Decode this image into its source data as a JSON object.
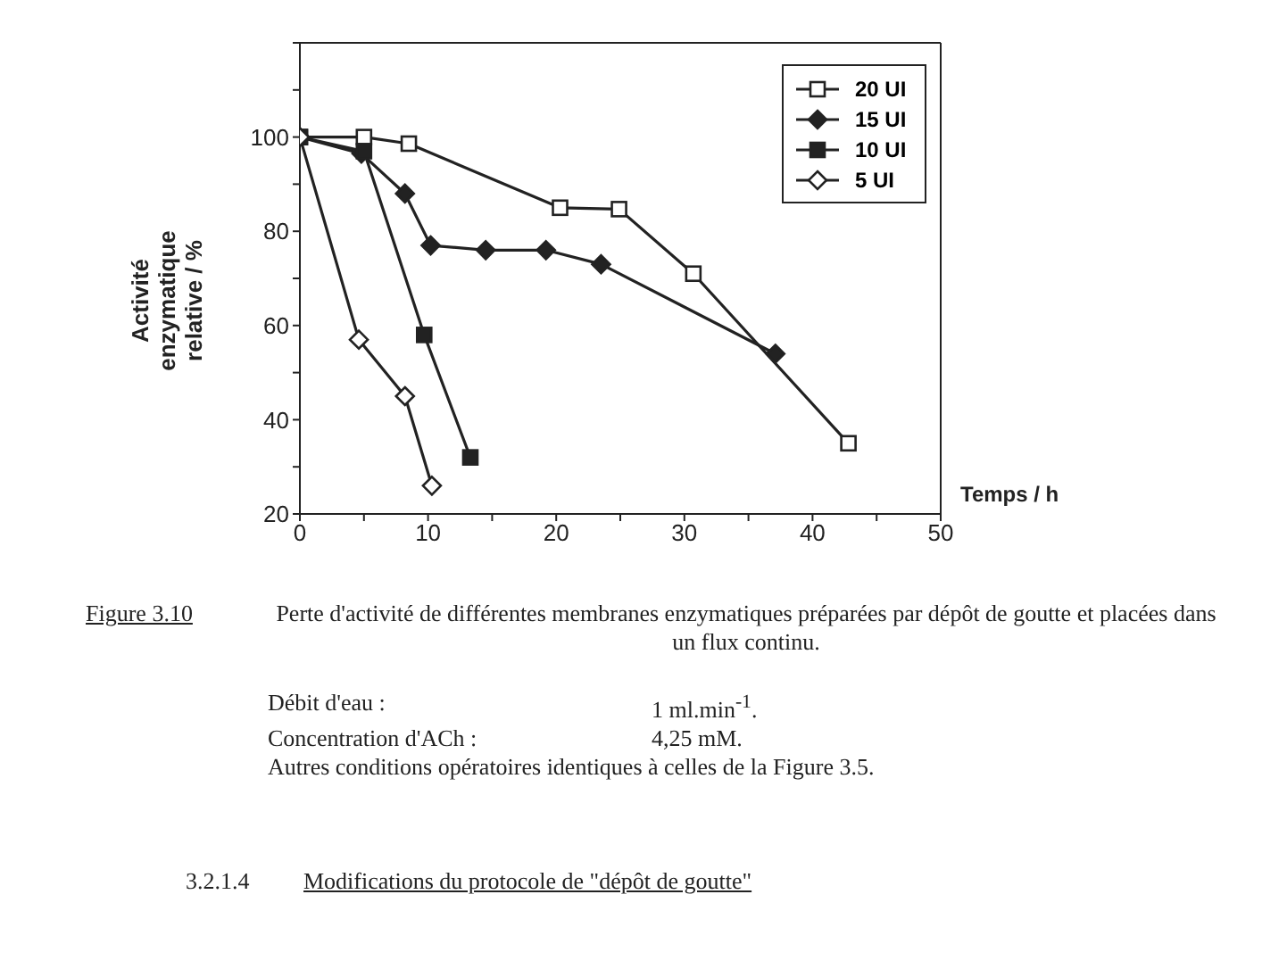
{
  "chart_data": {
    "type": "line",
    "xlabel": "Temps / h",
    "ylabel": "Activité enzymatique relative / %",
    "xlim": [
      0,
      50
    ],
    "xticks": [
      0,
      {
        "value": 5,
        "label": null
      },
      10,
      {
        "value": 15,
        "label": null
      },
      20,
      {
        "value": 25,
        "label": null
      },
      30,
      {
        "value": 35,
        "label": null
      },
      40,
      {
        "value": 45,
        "label": null
      },
      50
    ],
    "ylim": [
      20,
      120
    ],
    "yticks": [
      20,
      {
        "value": 30,
        "label": null
      },
      40,
      {
        "value": 50,
        "label": null
      },
      60,
      {
        "value": 70,
        "label": null
      },
      80,
      {
        "value": 90,
        "label": null
      },
      100,
      {
        "value": 110,
        "label": null
      },
      {
        "value": 120,
        "label": null
      }
    ],
    "legend": "top right",
    "series": [
      {
        "name": "20 UI",
        "color": "#222222",
        "marker": "square",
        "x": [
          0,
          5,
          8.5,
          20.3,
          24.9,
          30.7,
          42.8
        ],
        "values": [
          100,
          100,
          98.6,
          85,
          84.7,
          71,
          35
        ]
      },
      {
        "name": "15 UI",
        "color": "#222222",
        "marker": "diamond",
        "x": [
          0,
          4.8,
          8.2,
          10.2,
          14.5,
          19.2,
          23.5,
          37.1
        ],
        "values": [
          100,
          96.5,
          88,
          77,
          76,
          76,
          73,
          54
        ]
      },
      {
        "name": "10 UI",
        "color": "#222222",
        "marker": "square",
        "x": [
          0,
          5,
          9.7,
          13.3
        ],
        "values": [
          100,
          97,
          58,
          32
        ]
      },
      {
        "name": "5 UI",
        "color": "#222222",
        "marker": "diamond",
        "x": [
          0,
          4.6,
          8.2,
          10.3
        ],
        "values": [
          100,
          57,
          45,
          26
        ]
      }
    ],
    "annotations": [
      "Figure 3.10",
      "Perte d'activité de différentes membranes enzymatiques préparées par dépôt de goutte et placées dans un flux continu.",
      "Débit d'eau :",
      "1 ml.min$^{-1}$.",
      "Concentration d'ACh :",
      "4,25 mM.",
      "Autres conditions opératoires identiques à celles de la Figure 3.5.",
      "3.2.1.4",
      "Modifications du protocole de \"dépôt de goutte\""
    ]
  }
}
